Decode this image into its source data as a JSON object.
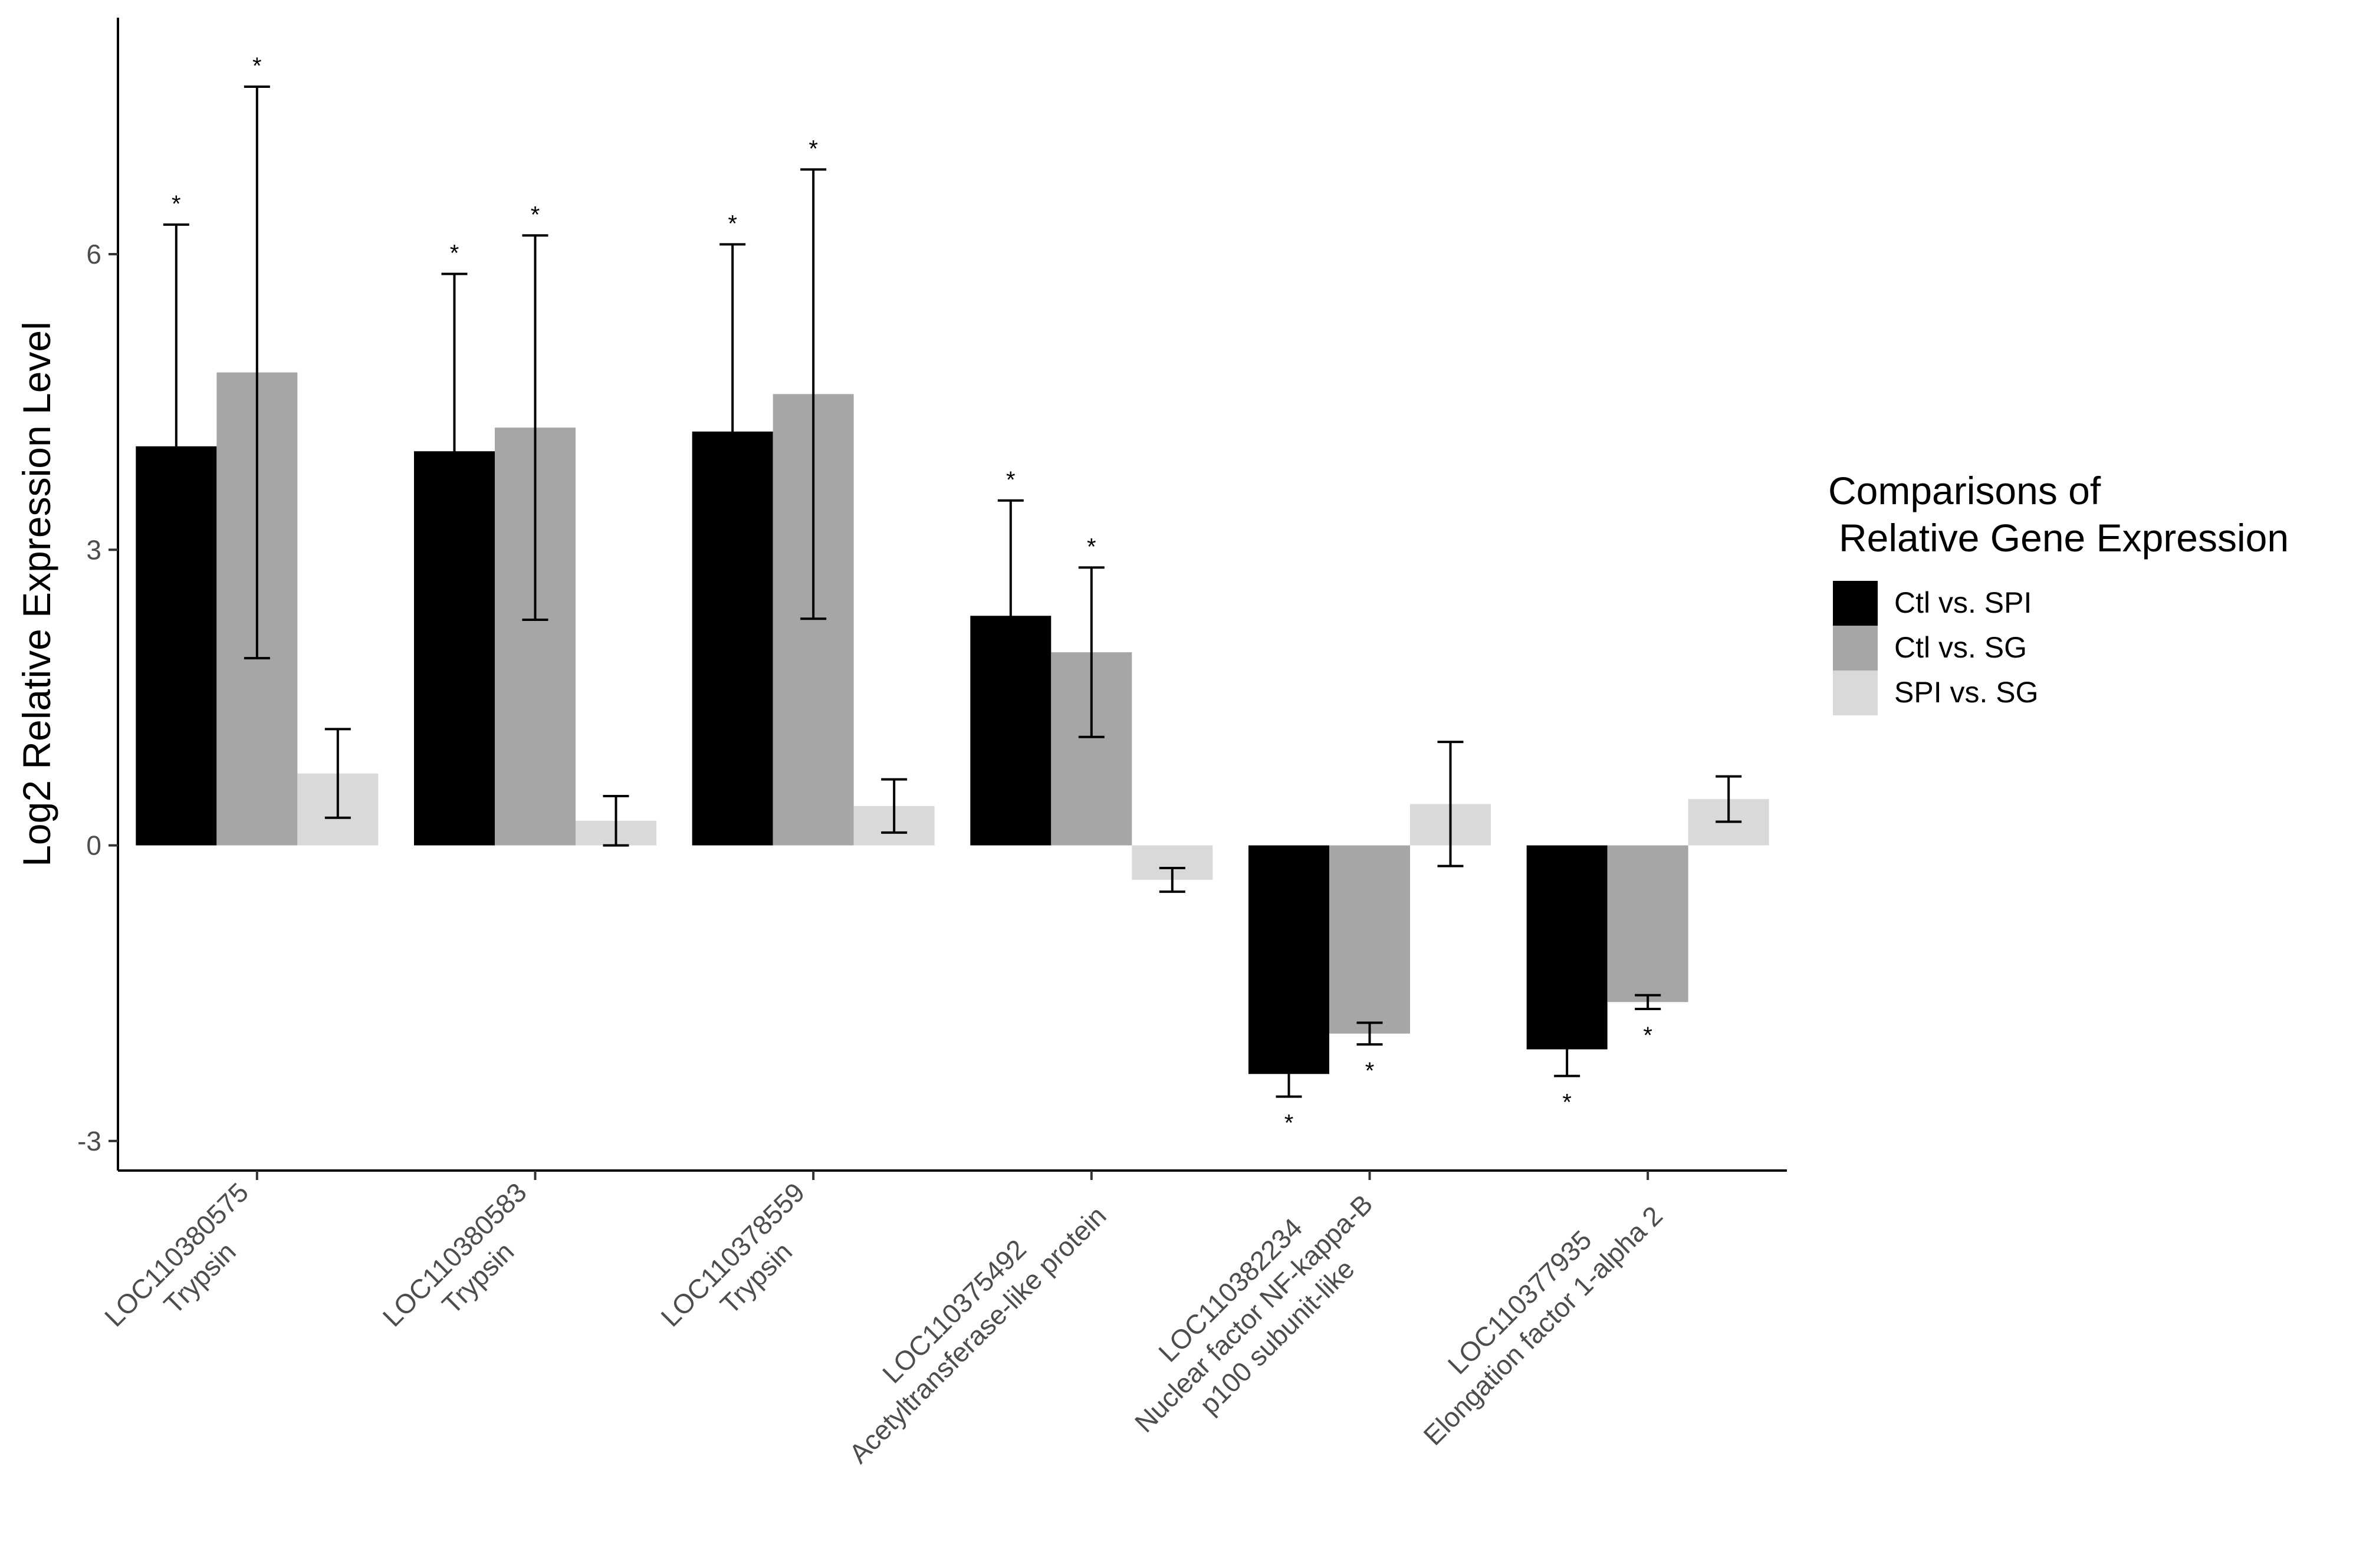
{
  "chart_data": {
    "type": "bar",
    "title": "",
    "xlabel": "",
    "ylabel": "Log2 Relative Expression Level",
    "ylim": [
      -3.3,
      8.4
    ],
    "yticks": [
      -3,
      0,
      3,
      6
    ],
    "grid": false,
    "legend_position": "right",
    "legend_title_lines": [
      "Comparisons of",
      "Relative Gene Expression"
    ],
    "categories": [
      [
        "LOC110380575",
        "Trypsin"
      ],
      [
        "LOC110380583",
        "Trypsin"
      ],
      [
        "LOC110378559",
        "Trypsin"
      ],
      [
        "LOC110375492",
        "Acetyltransferase-like protein"
      ],
      [
        "LOC110382234",
        "Nuclear factor NF-kappa-B",
        "p100 subunit-like"
      ],
      [
        "LOC110377935",
        "Elongation factor 1-alpha 2"
      ]
    ],
    "significance_marker": "*",
    "series": [
      {
        "name": "Ctl vs. SPI",
        "color": "#000000",
        "values": [
          4.05,
          4.0,
          4.2,
          2.33,
          -2.32,
          -2.07
        ],
        "err_low": [
          2.25,
          2.2,
          2.3,
          1.18,
          0.23,
          0.27
        ],
        "err_high": [
          2.25,
          1.8,
          1.9,
          1.17,
          0.23,
          0.27
        ],
        "significant": [
          true,
          true,
          true,
          true,
          true,
          true
        ]
      },
      {
        "name": "Ctl vs. SG",
        "color": "#a6a6a6",
        "values": [
          4.8,
          4.24,
          4.58,
          1.96,
          -1.91,
          -1.59
        ],
        "err_low": [
          2.9,
          1.95,
          2.28,
          0.86,
          0.11,
          0.07
        ],
        "err_high": [
          2.9,
          1.95,
          2.28,
          0.86,
          0.11,
          0.07
        ],
        "significant": [
          true,
          true,
          true,
          true,
          true,
          true
        ]
      },
      {
        "name": "SPI vs. SG",
        "color": "#d9d9d9",
        "values": [
          0.73,
          0.25,
          0.4,
          -0.35,
          0.42,
          0.47
        ],
        "err_low": [
          0.45,
          0.25,
          0.27,
          0.12,
          0.63,
          0.23
        ],
        "err_high": [
          0.45,
          0.25,
          0.27,
          0.12,
          0.63,
          0.23
        ],
        "significant": [
          false,
          false,
          false,
          false,
          false,
          false
        ]
      }
    ]
  }
}
